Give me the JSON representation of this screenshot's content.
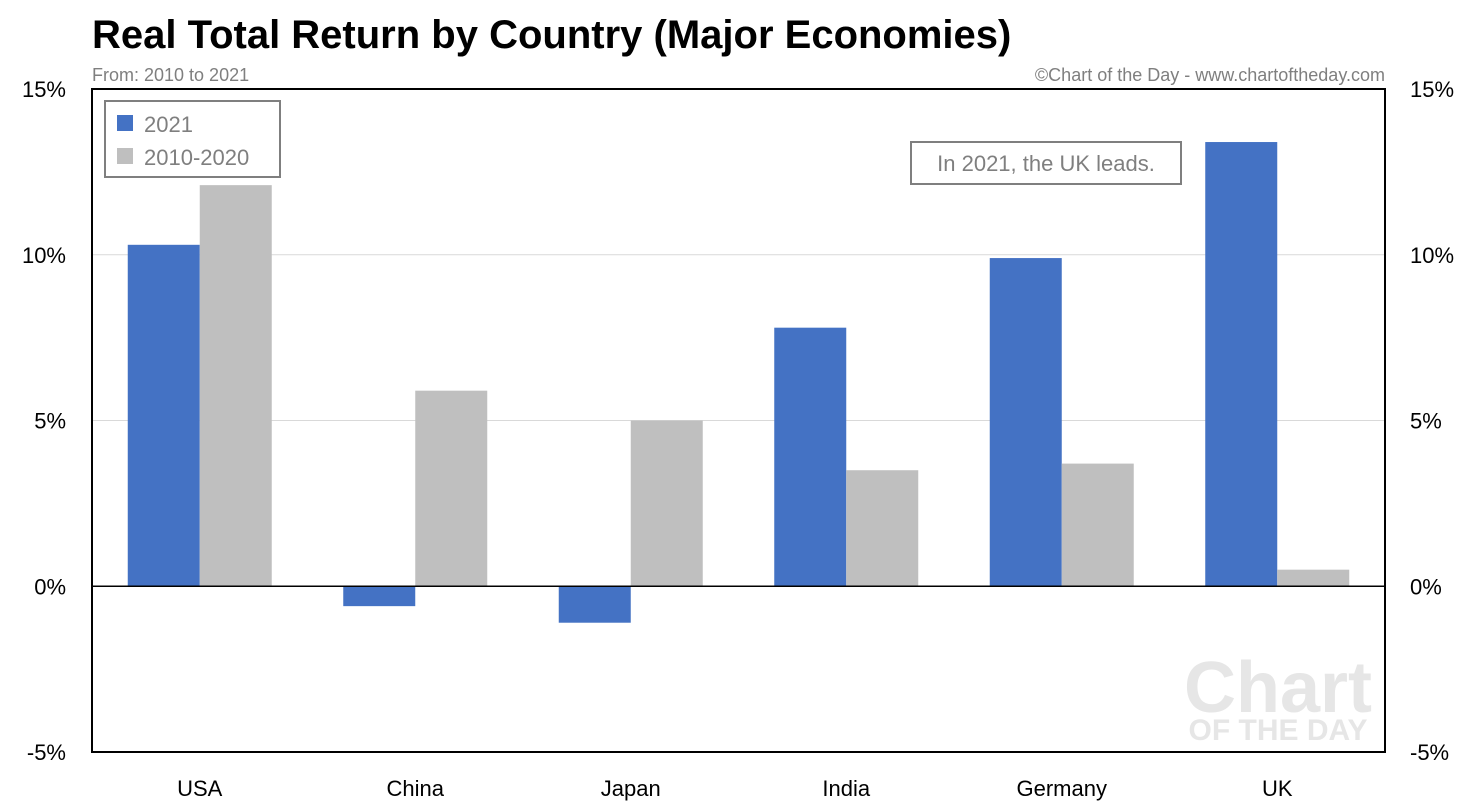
{
  "chart_data": {
    "type": "bar",
    "title": "Real Total Return by Country (Major Economies)",
    "subtitle": "From: 2010 to 2021",
    "source": "©Chart of the Day - www.chartoftheday.com",
    "categories": [
      "USA",
      "China",
      "Japan",
      "India",
      "Germany",
      "UK"
    ],
    "series": [
      {
        "name": "2021",
        "color": "#4472c4",
        "values": [
          10.3,
          -0.6,
          -1.1,
          7.8,
          9.9,
          13.4
        ]
      },
      {
        "name": "2010-2020",
        "color": "#bfbfbf",
        "values": [
          12.1,
          5.9,
          5.0,
          3.5,
          3.7,
          0.5
        ]
      }
    ],
    "ylim": [
      -5,
      15
    ],
    "yticks": [
      15,
      10,
      5,
      0,
      -5
    ],
    "ytick_labels": [
      "15%",
      "10%",
      "5%",
      "0%",
      "-5%"
    ],
    "xlabel": "",
    "ylabel": "",
    "grid": true,
    "legend_position": "top-left",
    "annotation": "In 2021, the UK leads.",
    "watermark": {
      "line1": "Chart",
      "line2": "OF THE DAY"
    }
  }
}
